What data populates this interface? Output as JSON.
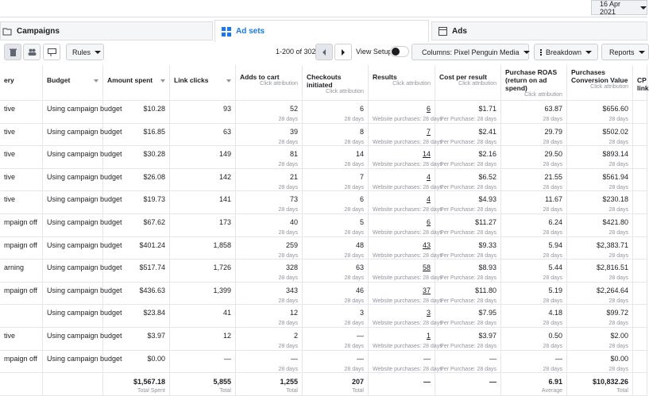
{
  "header": {
    "date": "16 Apr 2021"
  },
  "tabs": [
    "Campaigns",
    "Ad sets",
    "Ads"
  ],
  "toolbar": {
    "rules": "Rules",
    "range": "1-200 of 302",
    "view_setup": "View Setup",
    "columns": "Columns: Pixel Penguin Media",
    "breakdown": "Breakdown",
    "reports": "Reports"
  },
  "table": {
    "columns": [
      {
        "label": "ery"
      },
      {
        "label": "Budget"
      },
      {
        "label": "Amount spent"
      },
      {
        "label": "Link clicks"
      },
      {
        "label": "Adds to cart",
        "sub": "Click attribution"
      },
      {
        "label": "Checkouts initiated",
        "sub": "Click attribution"
      },
      {
        "label": "Results",
        "sub": "Click attribution"
      },
      {
        "label": "Cost per result",
        "sub": "Click attribution"
      },
      {
        "label": "Purchase ROAS (return on ad spend)",
        "sub": "Click attribution"
      },
      {
        "label": "Purchases Conversion Value",
        "sub": "Click attribution"
      },
      {
        "label": "CP link"
      }
    ],
    "period": "28 days",
    "results_sub": "Website purchases: 28 days",
    "cpr_sub": "Per Purchase: 28 days",
    "rows": [
      [
        "tive",
        "Using campaign budget",
        "$10.28",
        "93",
        "52",
        "6",
        "6",
        "$1.71",
        "63.87",
        "$656.60"
      ],
      [
        "tive",
        "Using campaign budget",
        "$16.85",
        "63",
        "39",
        "8",
        "7",
        "$2.41",
        "29.79",
        "$502.02"
      ],
      [
        "tive",
        "Using campaign budget",
        "$30.28",
        "149",
        "81",
        "14",
        "14",
        "$2.16",
        "29.50",
        "$893.14"
      ],
      [
        "tive",
        "Using campaign budget",
        "$26.08",
        "142",
        "21",
        "7",
        "4",
        "$6.52",
        "21.55",
        "$561.94"
      ],
      [
        "tive",
        "Using campaign budget",
        "$19.73",
        "141",
        "73",
        "6",
        "4",
        "$4.93",
        "11.67",
        "$230.18"
      ],
      [
        "mpaign off",
        "Using campaign budget",
        "$67.62",
        "173",
        "40",
        "5",
        "6",
        "$11.27",
        "6.24",
        "$421.80"
      ],
      [
        "mpaign off",
        "Using campaign budget",
        "$401.24",
        "1,858",
        "259",
        "48",
        "43",
        "$9.33",
        "5.94",
        "$2,383.71"
      ],
      [
        "arning",
        "Using campaign budget",
        "$517.74",
        "1,726",
        "328",
        "63",
        "58",
        "$8.93",
        "5.44",
        "$2,816.51"
      ],
      [
        "mpaign off",
        "Using campaign budget",
        "$436.63",
        "1,399",
        "343",
        "46",
        "37",
        "$11.80",
        "5.19",
        "$2,264.64"
      ],
      [
        null,
        "Using campaign budget",
        "$23.84",
        "41",
        "12",
        "3",
        "3",
        "$7.95",
        "4.18",
        "$99.72"
      ],
      [
        "tive",
        "Using campaign budget",
        "$3.97",
        "12",
        "2",
        "—",
        "1",
        "$3.97",
        "0.50",
        "$2.00"
      ],
      [
        "mpaign off",
        "Using campaign budget",
        "$0.00",
        "—",
        "—",
        "—",
        "—",
        "—",
        "—",
        "$0.00"
      ]
    ],
    "totals": [
      null,
      null,
      {
        "value": "$1,567.18",
        "label": "Total Spent"
      },
      {
        "value": "5,855",
        "label": "Total"
      },
      {
        "value": "1,255",
        "label": "Total"
      },
      {
        "value": "207",
        "label": "Total"
      },
      {
        "value": "—"
      },
      {
        "value": "—"
      },
      {
        "value": "6.91",
        "label": "Average"
      },
      {
        "value": "$10,832.26",
        "label": "Total"
      }
    ]
  }
}
